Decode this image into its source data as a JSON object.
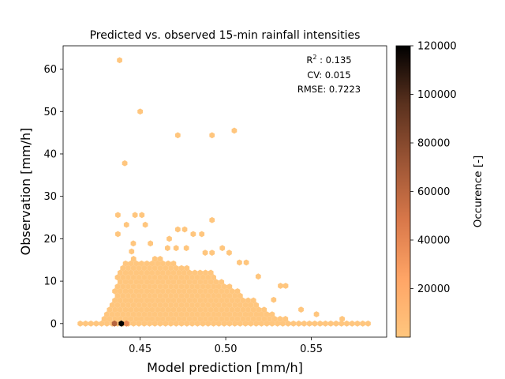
{
  "chart_data": {
    "type": "hexbin",
    "title": "Predicted vs. observed 15-min rainfall intensities",
    "xlabel": "Model prediction [mm/h]",
    "ylabel": "Observation [mm/h]",
    "xlim": [
      0.405,
      0.594
    ],
    "ylim": [
      -3.2,
      65.5
    ],
    "xticks": [
      0.45,
      0.5,
      0.55
    ],
    "xtick_labels": [
      "0.45",
      "0.50",
      "0.55"
    ],
    "yticks": [
      0,
      10,
      20,
      30,
      40,
      50,
      60
    ],
    "ytick_labels": [
      "0",
      "10",
      "20",
      "30",
      "40",
      "50",
      "60"
    ],
    "annotation": {
      "r2_label": "R",
      "r2_sup": "2",
      "r2_value": " : 0.135",
      "cv": "CV: 0.015",
      "rmse": "RMSE: 0.7223"
    },
    "colorbar": {
      "label": "Occurence [-]",
      "min": 0,
      "max": 120000,
      "ticks": [
        20000,
        40000,
        60000,
        80000,
        100000,
        120000
      ],
      "tick_labels": [
        "20000",
        "40000",
        "60000",
        "80000",
        "100000",
        "120000"
      ],
      "colormap_stops": [
        "#ffc67e",
        "#ffa566",
        "#d9784a",
        "#9c5535",
        "#5a311e",
        "#000000"
      ]
    },
    "grid": false,
    "points": [
      {
        "x": 0.438,
        "y": 62.1,
        "count": 1
      },
      {
        "x": 0.45,
        "y": 50.0,
        "count": 1
      },
      {
        "x": 0.505,
        "y": 45.5,
        "count": 1
      },
      {
        "x": 0.472,
        "y": 44.4,
        "count": 1
      },
      {
        "x": 0.492,
        "y": 44.4,
        "count": 1
      },
      {
        "x": 0.441,
        "y": 37.8,
        "count": 1
      },
      {
        "x": 0.437,
        "y": 25.6,
        "count": 1
      },
      {
        "x": 0.447,
        "y": 25.6,
        "count": 1
      },
      {
        "x": 0.451,
        "y": 25.6,
        "count": 1
      },
      {
        "x": 0.492,
        "y": 24.4,
        "count": 1
      },
      {
        "x": 0.442,
        "y": 23.3,
        "count": 2
      },
      {
        "x": 0.453,
        "y": 23.3,
        "count": 1
      },
      {
        "x": 0.472,
        "y": 22.2,
        "count": 2
      },
      {
        "x": 0.476,
        "y": 22.2,
        "count": 2
      },
      {
        "x": 0.481,
        "y": 21.1,
        "count": 2
      },
      {
        "x": 0.486,
        "y": 21.1,
        "count": 1
      },
      {
        "x": 0.437,
        "y": 21.1,
        "count": 2
      },
      {
        "x": 0.467,
        "y": 20.0,
        "count": 2
      },
      {
        "x": 0.498,
        "y": 17.8,
        "count": 1
      },
      {
        "x": 0.446,
        "y": 18.9,
        "count": 3
      },
      {
        "x": 0.456,
        "y": 18.9,
        "count": 2
      },
      {
        "x": 0.445,
        "y": 17.0,
        "count": 5
      },
      {
        "x": 0.466,
        "y": 17.8,
        "count": 3
      },
      {
        "x": 0.471,
        "y": 17.8,
        "count": 2
      },
      {
        "x": 0.477,
        "y": 17.8,
        "count": 2
      },
      {
        "x": 0.488,
        "y": 16.7,
        "count": 2
      },
      {
        "x": 0.492,
        "y": 16.7,
        "count": 2
      },
      {
        "x": 0.502,
        "y": 16.7,
        "count": 1
      },
      {
        "x": 0.508,
        "y": 14.4,
        "count": 2
      },
      {
        "x": 0.512,
        "y": 14.4,
        "count": 1
      },
      {
        "x": 0.519,
        "y": 11.1,
        "count": 2
      },
      {
        "x": 0.532,
        "y": 8.9,
        "count": 2
      },
      {
        "x": 0.535,
        "y": 8.9,
        "count": 1
      },
      {
        "x": 0.528,
        "y": 5.6,
        "count": 2
      },
      {
        "x": 0.544,
        "y": 3.3,
        "count": 2
      },
      {
        "x": 0.553,
        "y": 2.2,
        "count": 2
      },
      {
        "x": 0.568,
        "y": 1.1,
        "count": 2
      },
      {
        "x": 0.439,
        "y": 0.0,
        "count": 120000
      },
      {
        "x": 0.435,
        "y": 0.0,
        "count": 62000
      },
      {
        "x": 0.442,
        "y": 0.0,
        "count": 38000
      }
    ],
    "dense_region": {
      "description_free": true,
      "x_min": 0.415,
      "x_max": 0.584,
      "y_floor": 0.0,
      "envelope": [
        {
          "x": 0.415,
          "y": 0.0
        },
        {
          "x": 0.425,
          "y": 0.0
        },
        {
          "x": 0.43,
          "y": 2.2
        },
        {
          "x": 0.434,
          "y": 5.6
        },
        {
          "x": 0.436,
          "y": 10.0
        },
        {
          "x": 0.44,
          "y": 14.4
        },
        {
          "x": 0.446,
          "y": 15.6
        },
        {
          "x": 0.452,
          "y": 14.4
        },
        {
          "x": 0.46,
          "y": 15.6
        },
        {
          "x": 0.468,
          "y": 14.4
        },
        {
          "x": 0.476,
          "y": 13.3
        },
        {
          "x": 0.484,
          "y": 12.2
        },
        {
          "x": 0.492,
          "y": 12.2
        },
        {
          "x": 0.498,
          "y": 10.0
        },
        {
          "x": 0.504,
          "y": 8.9
        },
        {
          "x": 0.51,
          "y": 6.7
        },
        {
          "x": 0.516,
          "y": 5.6
        },
        {
          "x": 0.522,
          "y": 3.3
        },
        {
          "x": 0.528,
          "y": 2.2
        },
        {
          "x": 0.536,
          "y": 1.1
        },
        {
          "x": 0.546,
          "y": 0.0
        },
        {
          "x": 0.56,
          "y": 0.0
        },
        {
          "x": 0.584,
          "y": 0.0
        }
      ]
    }
  }
}
